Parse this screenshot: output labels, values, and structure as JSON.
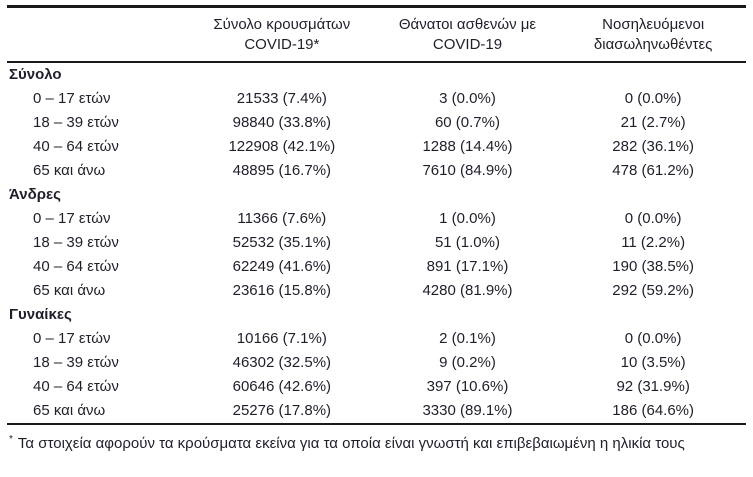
{
  "chart_data": {
    "type": "table",
    "text_color": "#1f1f2b",
    "rule_color": "#1a1a1a",
    "column_headers": [
      {
        "line1": "Σύνολο κρουσμάτων",
        "line2": "COVID-19*"
      },
      {
        "line1": "Θάνατοι ασθενών με",
        "line2": "COVID-19"
      },
      {
        "line1": "Νοσηλευόμενοι",
        "line2": "διασωληνωθέντες"
      }
    ],
    "groups": [
      {
        "label": "Σύνολο",
        "rows": [
          {
            "label": "0 – 17 ετών",
            "cases": "21533 (7.4%)",
            "deaths": "3 (0.0%)",
            "intubated": "0 (0.0%)"
          },
          {
            "label": "18 – 39 ετών",
            "cases": "98840 (33.8%)",
            "deaths": "60 (0.7%)",
            "intubated": "21 (2.7%)"
          },
          {
            "label": "40 – 64 ετών",
            "cases": "122908 (42.1%)",
            "deaths": "1288 (14.4%)",
            "intubated": "282 (36.1%)"
          },
          {
            "label": "65 και άνω",
            "cases": "48895 (16.7%)",
            "deaths": "7610 (84.9%)",
            "intubated": "478 (61.2%)"
          }
        ]
      },
      {
        "label": "Άνδρες",
        "rows": [
          {
            "label": "0 – 17 ετών",
            "cases": "11366 (7.6%)",
            "deaths": "1 (0.0%)",
            "intubated": "0 (0.0%)"
          },
          {
            "label": "18 – 39 ετών",
            "cases": "52532 (35.1%)",
            "deaths": "51 (1.0%)",
            "intubated": "11 (2.2%)"
          },
          {
            "label": "40 – 64 ετών",
            "cases": "62249 (41.6%)",
            "deaths": "891 (17.1%)",
            "intubated": "190 (38.5%)"
          },
          {
            "label": "65 και άνω",
            "cases": "23616 (15.8%)",
            "deaths": "4280 (81.9%)",
            "intubated": "292 (59.2%)"
          }
        ]
      },
      {
        "label": "Γυναίκες",
        "rows": [
          {
            "label": "0 – 17 ετών",
            "cases": "10166 (7.1%)",
            "deaths": "2 (0.1%)",
            "intubated": "0 (0.0%)"
          },
          {
            "label": "18 – 39 ετών",
            "cases": "46302 (32.5%)",
            "deaths": "9 (0.2%)",
            "intubated": "10 (3.5%)"
          },
          {
            "label": "40 – 64 ετών",
            "cases": "60646 (42.6%)",
            "deaths": "397 (10.6%)",
            "intubated": "92 (31.9%)"
          },
          {
            "label": "65 και άνω",
            "cases": "25276 (17.8%)",
            "deaths": "3330 (89.1%)",
            "intubated": "186 (64.6%)"
          }
        ]
      }
    ],
    "footnote_marker": "*",
    "footnote_text": "Τα στοιχεία αφορούν τα κρούσματα εκείνα για τα οποία είναι γνωστή και επιβεβαιωμένη η ηλικία τους"
  }
}
